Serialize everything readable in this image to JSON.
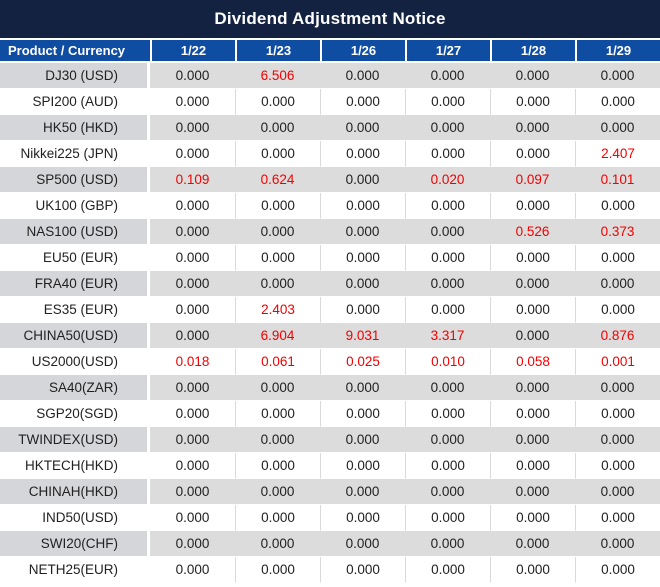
{
  "title": "Dividend Adjustment Notice",
  "colors": {
    "title_bg": "#122240",
    "header_bg": "#0f4da2",
    "label_gray": "#d5d6d9",
    "cell_gray": "#dcdcdc",
    "row_white": "#ffffff",
    "text_dark": "#212121",
    "value_red": "#f20000",
    "divider_gray": "#d9d9d9"
  },
  "table": {
    "product_header": "Product / Currency",
    "date_headers": [
      "1/22",
      "1/23",
      "1/26",
      "1/27",
      "1/28",
      "1/29"
    ],
    "rows": [
      {
        "product": "DJ30 (USD)",
        "values": [
          "0.000",
          "6.506",
          "0.000",
          "0.000",
          "0.000",
          "0.000"
        ],
        "red": [
          0,
          1,
          0,
          0,
          0,
          0
        ]
      },
      {
        "product": "SPI200 (AUD)",
        "values": [
          "0.000",
          "0.000",
          "0.000",
          "0.000",
          "0.000",
          "0.000"
        ],
        "red": [
          0,
          0,
          0,
          0,
          0,
          0
        ]
      },
      {
        "product": "HK50 (HKD)",
        "values": [
          "0.000",
          "0.000",
          "0.000",
          "0.000",
          "0.000",
          "0.000"
        ],
        "red": [
          0,
          0,
          0,
          0,
          0,
          0
        ]
      },
      {
        "product": "Nikkei225 (JPN)",
        "values": [
          "0.000",
          "0.000",
          "0.000",
          "0.000",
          "0.000",
          "2.407"
        ],
        "red": [
          0,
          0,
          0,
          0,
          0,
          1
        ]
      },
      {
        "product": "SP500 (USD)",
        "values": [
          "0.109",
          "0.624",
          "0.000",
          "0.020",
          "0.097",
          "0.101"
        ],
        "red": [
          1,
          1,
          0,
          1,
          1,
          1
        ]
      },
      {
        "product": "UK100 (GBP)",
        "values": [
          "0.000",
          "0.000",
          "0.000",
          "0.000",
          "0.000",
          "0.000"
        ],
        "red": [
          0,
          0,
          0,
          0,
          0,
          0
        ]
      },
      {
        "product": "NAS100 (USD)",
        "values": [
          "0.000",
          "0.000",
          "0.000",
          "0.000",
          "0.526",
          "0.373"
        ],
        "red": [
          0,
          0,
          0,
          0,
          1,
          1
        ]
      },
      {
        "product": "EU50 (EUR)",
        "values": [
          "0.000",
          "0.000",
          "0.000",
          "0.000",
          "0.000",
          "0.000"
        ],
        "red": [
          0,
          0,
          0,
          0,
          0,
          0
        ]
      },
      {
        "product": "FRA40 (EUR)",
        "values": [
          "0.000",
          "0.000",
          "0.000",
          "0.000",
          "0.000",
          "0.000"
        ],
        "red": [
          0,
          0,
          0,
          0,
          0,
          0
        ]
      },
      {
        "product": "ES35 (EUR)",
        "values": [
          "0.000",
          "2.403",
          "0.000",
          "0.000",
          "0.000",
          "0.000"
        ],
        "red": [
          0,
          1,
          0,
          0,
          0,
          0
        ]
      },
      {
        "product": "CHINA50(USD)",
        "values": [
          "0.000",
          "6.904",
          "9.031",
          "3.317",
          "0.000",
          "0.876"
        ],
        "red": [
          0,
          1,
          1,
          1,
          0,
          1
        ]
      },
      {
        "product": "US2000(USD)",
        "values": [
          "0.018",
          "0.061",
          "0.025",
          "0.010",
          "0.058",
          "0.001"
        ],
        "red": [
          1,
          1,
          1,
          1,
          1,
          1
        ]
      },
      {
        "product": "SA40(ZAR)",
        "values": [
          "0.000",
          "0.000",
          "0.000",
          "0.000",
          "0.000",
          "0.000"
        ],
        "red": [
          0,
          0,
          0,
          0,
          0,
          0
        ]
      },
      {
        "product": "SGP20(SGD)",
        "values": [
          "0.000",
          "0.000",
          "0.000",
          "0.000",
          "0.000",
          "0.000"
        ],
        "red": [
          0,
          0,
          0,
          0,
          0,
          0
        ]
      },
      {
        "product": "TWINDEX(USD)",
        "values": [
          "0.000",
          "0.000",
          "0.000",
          "0.000",
          "0.000",
          "0.000"
        ],
        "red": [
          0,
          0,
          0,
          0,
          0,
          0
        ]
      },
      {
        "product": "HKTECH(HKD)",
        "values": [
          "0.000",
          "0.000",
          "0.000",
          "0.000",
          "0.000",
          "0.000"
        ],
        "red": [
          0,
          0,
          0,
          0,
          0,
          0
        ]
      },
      {
        "product": "CHINAH(HKD)",
        "values": [
          "0.000",
          "0.000",
          "0.000",
          "0.000",
          "0.000",
          "0.000"
        ],
        "red": [
          0,
          0,
          0,
          0,
          0,
          0
        ]
      },
      {
        "product": "IND50(USD)",
        "values": [
          "0.000",
          "0.000",
          "0.000",
          "0.000",
          "0.000",
          "0.000"
        ],
        "red": [
          0,
          0,
          0,
          0,
          0,
          0
        ]
      },
      {
        "product": "SWI20(CHF)",
        "values": [
          "0.000",
          "0.000",
          "0.000",
          "0.000",
          "0.000",
          "0.000"
        ],
        "red": [
          0,
          0,
          0,
          0,
          0,
          0
        ]
      },
      {
        "product": "NETH25(EUR)",
        "values": [
          "0.000",
          "0.000",
          "0.000",
          "0.000",
          "0.000",
          "0.000"
        ],
        "red": [
          0,
          0,
          0,
          0,
          0,
          0
        ]
      }
    ]
  }
}
